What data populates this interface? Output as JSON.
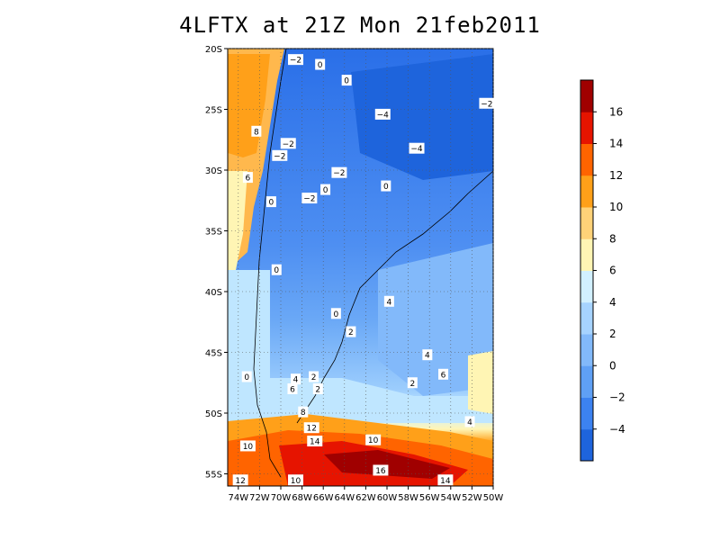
{
  "title": "4LFTX at 21Z Mon 21feb2011",
  "map": {
    "variable": "4LFTX",
    "lat_range": [
      -56,
      -20
    ],
    "lon_range": [
      -75,
      -50
    ],
    "lat_ticks": [
      {
        "lat": -20,
        "label": "20S"
      },
      {
        "lat": -25,
        "label": "25S"
      },
      {
        "lat": -30,
        "label": "30S"
      },
      {
        "lat": -35,
        "label": "35S"
      },
      {
        "lat": -40,
        "label": "40S"
      },
      {
        "lat": -45,
        "label": "45S"
      },
      {
        "lat": -50,
        "label": "50S"
      },
      {
        "lat": -55,
        "label": "55S"
      }
    ],
    "lon_ticks": [
      {
        "lon": -74,
        "label": "74W"
      },
      {
        "lon": -72,
        "label": "72W"
      },
      {
        "lon": -70,
        "label": "70W"
      },
      {
        "lon": -68,
        "label": "68W"
      },
      {
        "lon": -66,
        "label": "66W"
      },
      {
        "lon": -64,
        "label": "64W"
      },
      {
        "lon": -62,
        "label": "62W"
      },
      {
        "lon": -60,
        "label": "60W"
      },
      {
        "lon": -58,
        "label": "58W"
      },
      {
        "lon": -56,
        "label": "56W"
      },
      {
        "lon": -54,
        "label": "54W"
      },
      {
        "lon": -52,
        "label": "52W"
      },
      {
        "lon": -50,
        "label": "50W"
      }
    ],
    "contour_labels": [
      {
        "text": "−2",
        "lon": -68.6,
        "lat": -20.9
      },
      {
        "text": "0",
        "lon": -66.3,
        "lat": -21.3
      },
      {
        "text": "0",
        "lon": -63.8,
        "lat": -22.6
      },
      {
        "text": "−2",
        "lon": -50.6,
        "lat": -24.5
      },
      {
        "text": "−4",
        "lon": -60.4,
        "lat": -25.4
      },
      {
        "text": "8",
        "lon": -72.3,
        "lat": -26.8
      },
      {
        "text": "−2",
        "lon": -69.3,
        "lat": -27.8
      },
      {
        "text": "−4",
        "lon": -57.2,
        "lat": -28.2
      },
      {
        "text": "−2",
        "lon": -70.1,
        "lat": -28.8
      },
      {
        "text": "6",
        "lon": -73.1,
        "lat": -30.6
      },
      {
        "text": "−2",
        "lon": -64.5,
        "lat": -30.2
      },
      {
        "text": "0",
        "lon": -65.8,
        "lat": -31.6
      },
      {
        "text": "0",
        "lon": -60.1,
        "lat": -31.3
      },
      {
        "text": "−2",
        "lon": -67.3,
        "lat": -32.3
      },
      {
        "text": "0",
        "lon": -70.9,
        "lat": -32.6
      },
      {
        "text": "0",
        "lon": -70.4,
        "lat": -38.2
      },
      {
        "text": "4",
        "lon": -59.8,
        "lat": -40.8
      },
      {
        "text": "0",
        "lon": -64.8,
        "lat": -41.8
      },
      {
        "text": "2",
        "lon": -63.4,
        "lat": -43.3
      },
      {
        "text": "4",
        "lon": -56.2,
        "lat": -45.2
      },
      {
        "text": "6",
        "lon": -54.7,
        "lat": -46.8
      },
      {
        "text": "0",
        "lon": -73.2,
        "lat": -47.0
      },
      {
        "text": "4",
        "lon": -68.6,
        "lat": -47.2
      },
      {
        "text": "2",
        "lon": -66.9,
        "lat": -47.0
      },
      {
        "text": "2",
        "lon": -57.6,
        "lat": -47.5
      },
      {
        "text": "6",
        "lon": -68.9,
        "lat": -48.0
      },
      {
        "text": "2",
        "lon": -66.5,
        "lat": -48.0
      },
      {
        "text": "8",
        "lon": -67.9,
        "lat": -49.9
      },
      {
        "text": "4",
        "lon": -52.2,
        "lat": -50.7
      },
      {
        "text": "12",
        "lon": -67.1,
        "lat": -51.2
      },
      {
        "text": "10",
        "lon": -61.3,
        "lat": -52.2
      },
      {
        "text": "14",
        "lon": -66.8,
        "lat": -52.3
      },
      {
        "text": "10",
        "lon": -73.1,
        "lat": -52.7
      },
      {
        "text": "16",
        "lon": -60.6,
        "lat": -54.7
      },
      {
        "text": "12",
        "lon": -73.8,
        "lat": -55.5
      },
      {
        "text": "10",
        "lon": -68.6,
        "lat": -55.5
      },
      {
        "text": "14",
        "lon": -54.5,
        "lat": -55.5
      }
    ]
  },
  "colorbar": {
    "levels": [
      -4,
      -2,
      0,
      2,
      4,
      6,
      8,
      10,
      12,
      14,
      16
    ],
    "labels": [
      "−4",
      "−2",
      "0",
      "2",
      "4",
      "6",
      "8",
      "10",
      "12",
      "14",
      "16"
    ],
    "colors": [
      "#1e64dc",
      "#3c82f0",
      "#5fa0f5",
      "#82b9fa",
      "#a6d3ff",
      "#d2f0ff",
      "#fff5b4",
      "#ffd278",
      "#ffa019",
      "#ff6400",
      "#e61400",
      "#a00000"
    ]
  }
}
